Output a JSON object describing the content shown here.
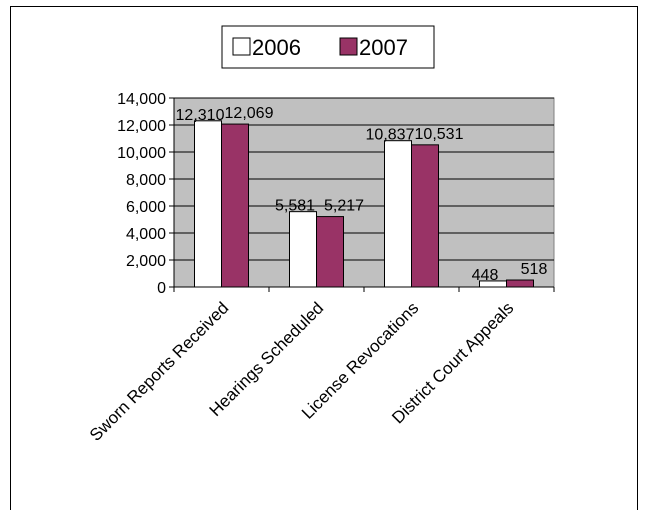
{
  "chart_data": {
    "type": "bar",
    "categories": [
      "Sworn Reports Received",
      "Hearings Scheduled",
      "License Revocations",
      "District Court Appeals"
    ],
    "series": [
      {
        "name": "2006",
        "values": [
          12310,
          5581,
          10837,
          448
        ],
        "labels": [
          "12,310",
          "5,581",
          "10,837",
          "448"
        ]
      },
      {
        "name": "2007",
        "values": [
          12069,
          5217,
          10531,
          518
        ],
        "labels": [
          "12,069",
          "5,217",
          "10,531",
          "518"
        ]
      }
    ],
    "ylim": [
      0,
      14000
    ],
    "yticks": [
      "0",
      "2,000",
      "4,000",
      "6,000",
      "8,000",
      "10,000",
      "12,000",
      "14,000"
    ],
    "grid": true,
    "legend_position": "top",
    "colors": {
      "plot_background": "#c0c0c0",
      "series_2006": "#ffffff",
      "series_2007": "#993366",
      "gridline": "#000000"
    }
  }
}
